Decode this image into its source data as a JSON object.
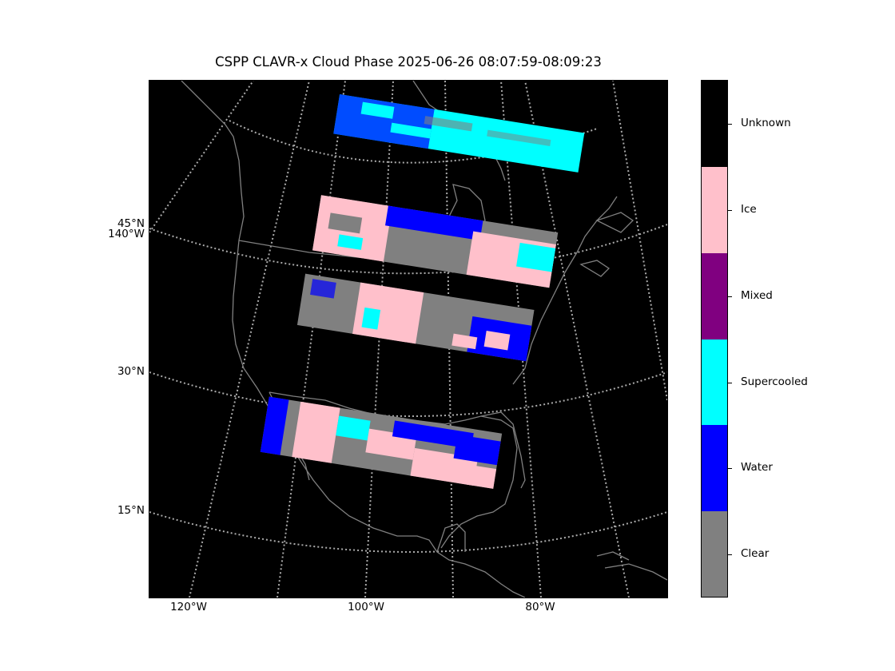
{
  "title": "CSPP CLAVR-x Cloud Phase 2025-06-26 08:07:59-08:09:23",
  "lat_labels": [
    {
      "text": "45°N",
      "lat": 45
    },
    {
      "text": "140°W",
      "lat": 45
    },
    {
      "text": "30°N",
      "lat": 30
    },
    {
      "text": "15°N",
      "lat": 15
    }
  ],
  "lon_labels": [
    "120°W",
    "100°W",
    "80°W"
  ],
  "colorbar": {
    "classes": [
      {
        "label": "Unknown",
        "color": "#000000"
      },
      {
        "label": "Ice",
        "color": "#ffc0cb"
      },
      {
        "label": "Mixed",
        "color": "#800080"
      },
      {
        "label": "Supercooled",
        "color": "#00ffff"
      },
      {
        "label": "Water",
        "color": "#0000ff"
      },
      {
        "label": "Clear",
        "color": "#808080"
      }
    ]
  },
  "colors": {
    "background": "#000000",
    "coastline": "#808080",
    "gridline": "#aaaaaa"
  }
}
